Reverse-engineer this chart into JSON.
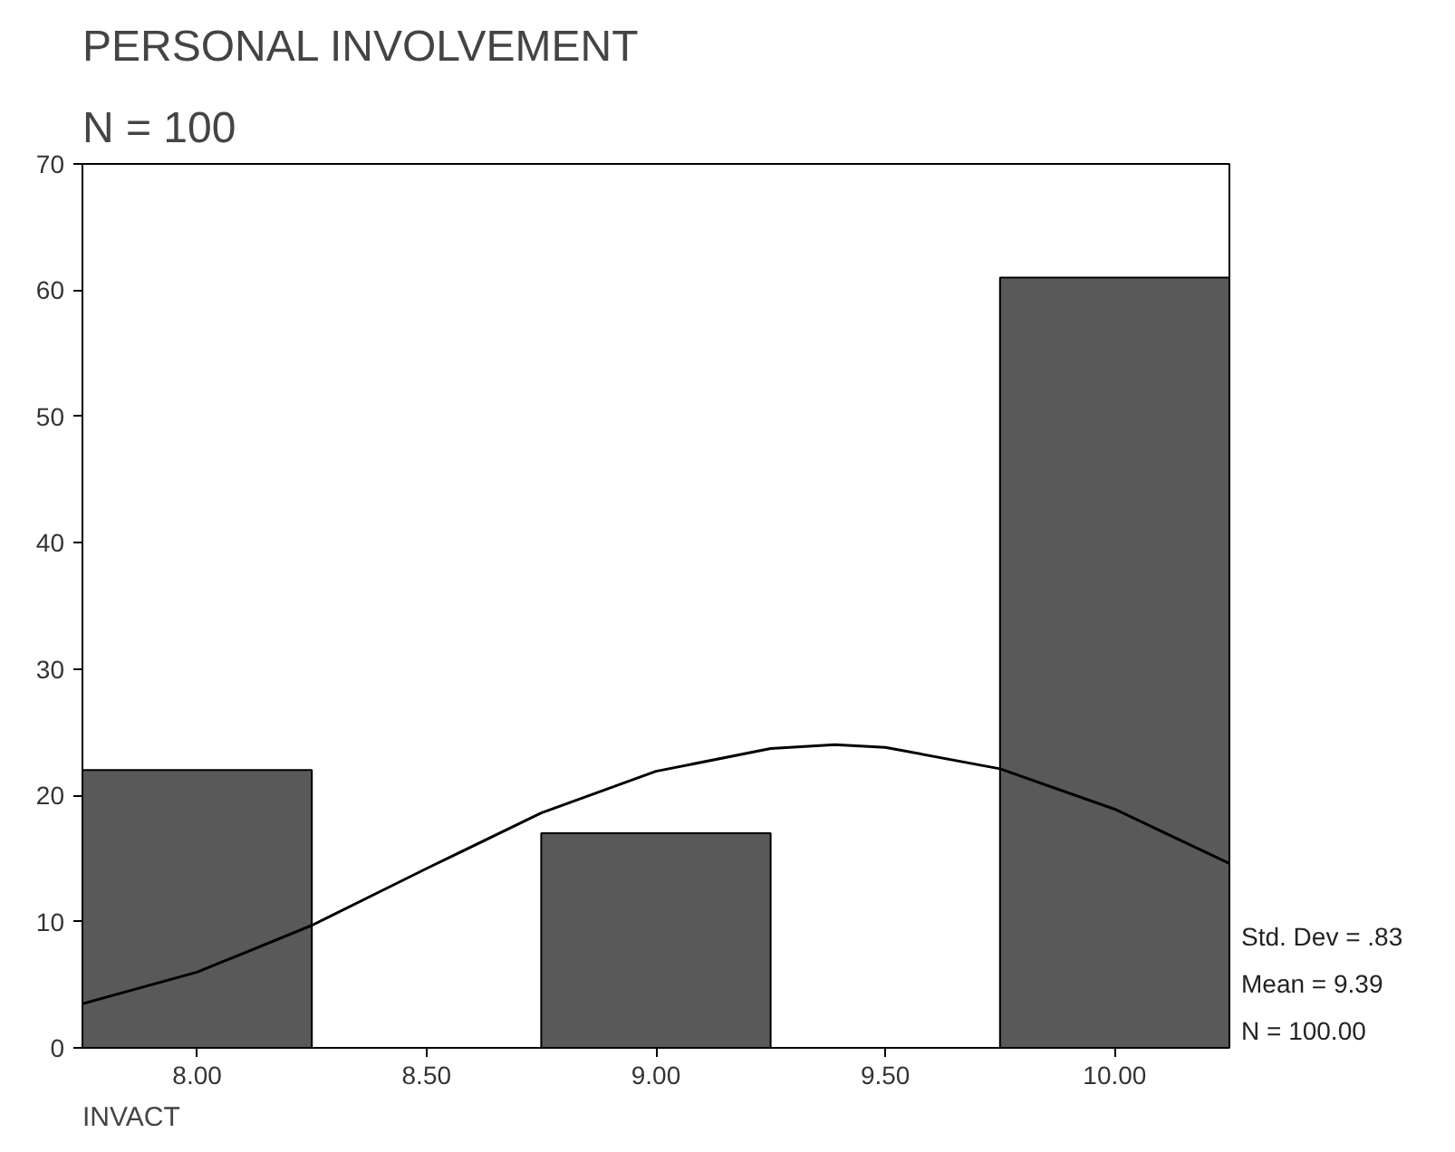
{
  "chart_data": {
    "type": "histogram",
    "title": "PERSONAL INVOLVEMENT",
    "subtitle": "N = 100",
    "xlabel": "INVACT",
    "bins": [
      7.75,
      8.25,
      8.75,
      9.25,
      9.75,
      10.25
    ],
    "values": [
      22,
      0,
      17,
      0,
      61
    ],
    "color": "#595959",
    "series": [
      {
        "type": "line",
        "color": "#000000",
        "x": [
          7.75,
          8.0,
          8.25,
          8.5,
          8.75,
          9.0,
          9.25,
          9.39,
          9.5,
          9.75,
          10.0,
          10.25
        ],
        "values": [
          3.5,
          6,
          9.7,
          14.2,
          18.6,
          21.9,
          23.7,
          24,
          23.8,
          22.1,
          18.9,
          14.6
        ]
      }
    ],
    "xlim": [
      7.75,
      10.25
    ],
    "ylim": [
      0,
      70
    ],
    "xticks": [
      {
        "value": 8,
        "label": "8.00"
      },
      {
        "value": 8.5,
        "label": "8.50"
      },
      {
        "value": 9,
        "label": "9.00"
      },
      {
        "value": 9.5,
        "label": "9.50"
      },
      {
        "value": 10,
        "label": "10.00"
      }
    ],
    "yticks": [
      0,
      10,
      20,
      30,
      40,
      50,
      60,
      70
    ],
    "annotations": [
      "Std. Dev = .83",
      "Mean = 9.39",
      "N = 100.00"
    ],
    "grid": false
  }
}
